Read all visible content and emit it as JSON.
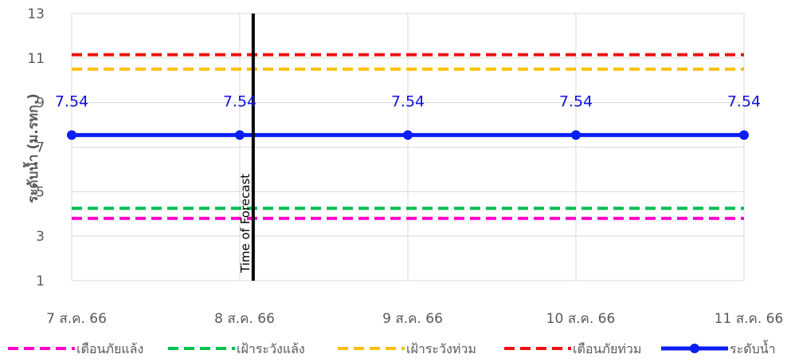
{
  "chart_data": {
    "type": "line",
    "title": "",
    "xlabel": "",
    "ylabel": "ระดับน้ำ (ม.รทก.)",
    "categories": [
      "7 ส.ค. 66",
      "8 ส.ค. 66",
      "9 ส.ค. 66",
      "10 ส.ค. 66",
      "11 ส.ค. 66"
    ],
    "ylim": [
      1,
      13
    ],
    "yticks": [
      1,
      3,
      5,
      7,
      9,
      11,
      13
    ],
    "grid": true,
    "legend": "bottom",
    "series": [
      {
        "name": "เตือนภัยแล้ง",
        "values": [
          3.8,
          3.8,
          3.8,
          3.8,
          3.8
        ],
        "color": "#ff00cc",
        "style": "dashed",
        "markers": false
      },
      {
        "name": "เฝ้าระวังแล้ง",
        "values": [
          4.25,
          4.25,
          4.25,
          4.25,
          4.25
        ],
        "color": "#00c050",
        "style": "dashed",
        "markers": false
      },
      {
        "name": "เฝ้าระวังท่วม",
        "values": [
          10.5,
          10.5,
          10.5,
          10.5,
          10.5
        ],
        "color": "#ffc000",
        "style": "dashed",
        "markers": false
      },
      {
        "name": "เตือนภัยท่วม",
        "values": [
          11.15,
          11.15,
          11.15,
          11.15,
          11.15
        ],
        "color": "#ee1111",
        "style": "dashed",
        "markers": false
      },
      {
        "name": "ระดับน้ำ",
        "values": [
          7.54,
          7.54,
          7.54,
          7.54,
          7.54
        ],
        "color": "#0a1ef5",
        "style": "solid",
        "markers": true,
        "data_labels": [
          "7.54",
          "7.54",
          "7.54",
          "7.54",
          "7.54"
        ]
      }
    ],
    "annotations": [
      {
        "type": "vertical-line",
        "x": "8 ส.ค. 66",
        "offset_fraction": 0.08,
        "label": "Time of Forecast",
        "color": "#000000"
      }
    ]
  }
}
